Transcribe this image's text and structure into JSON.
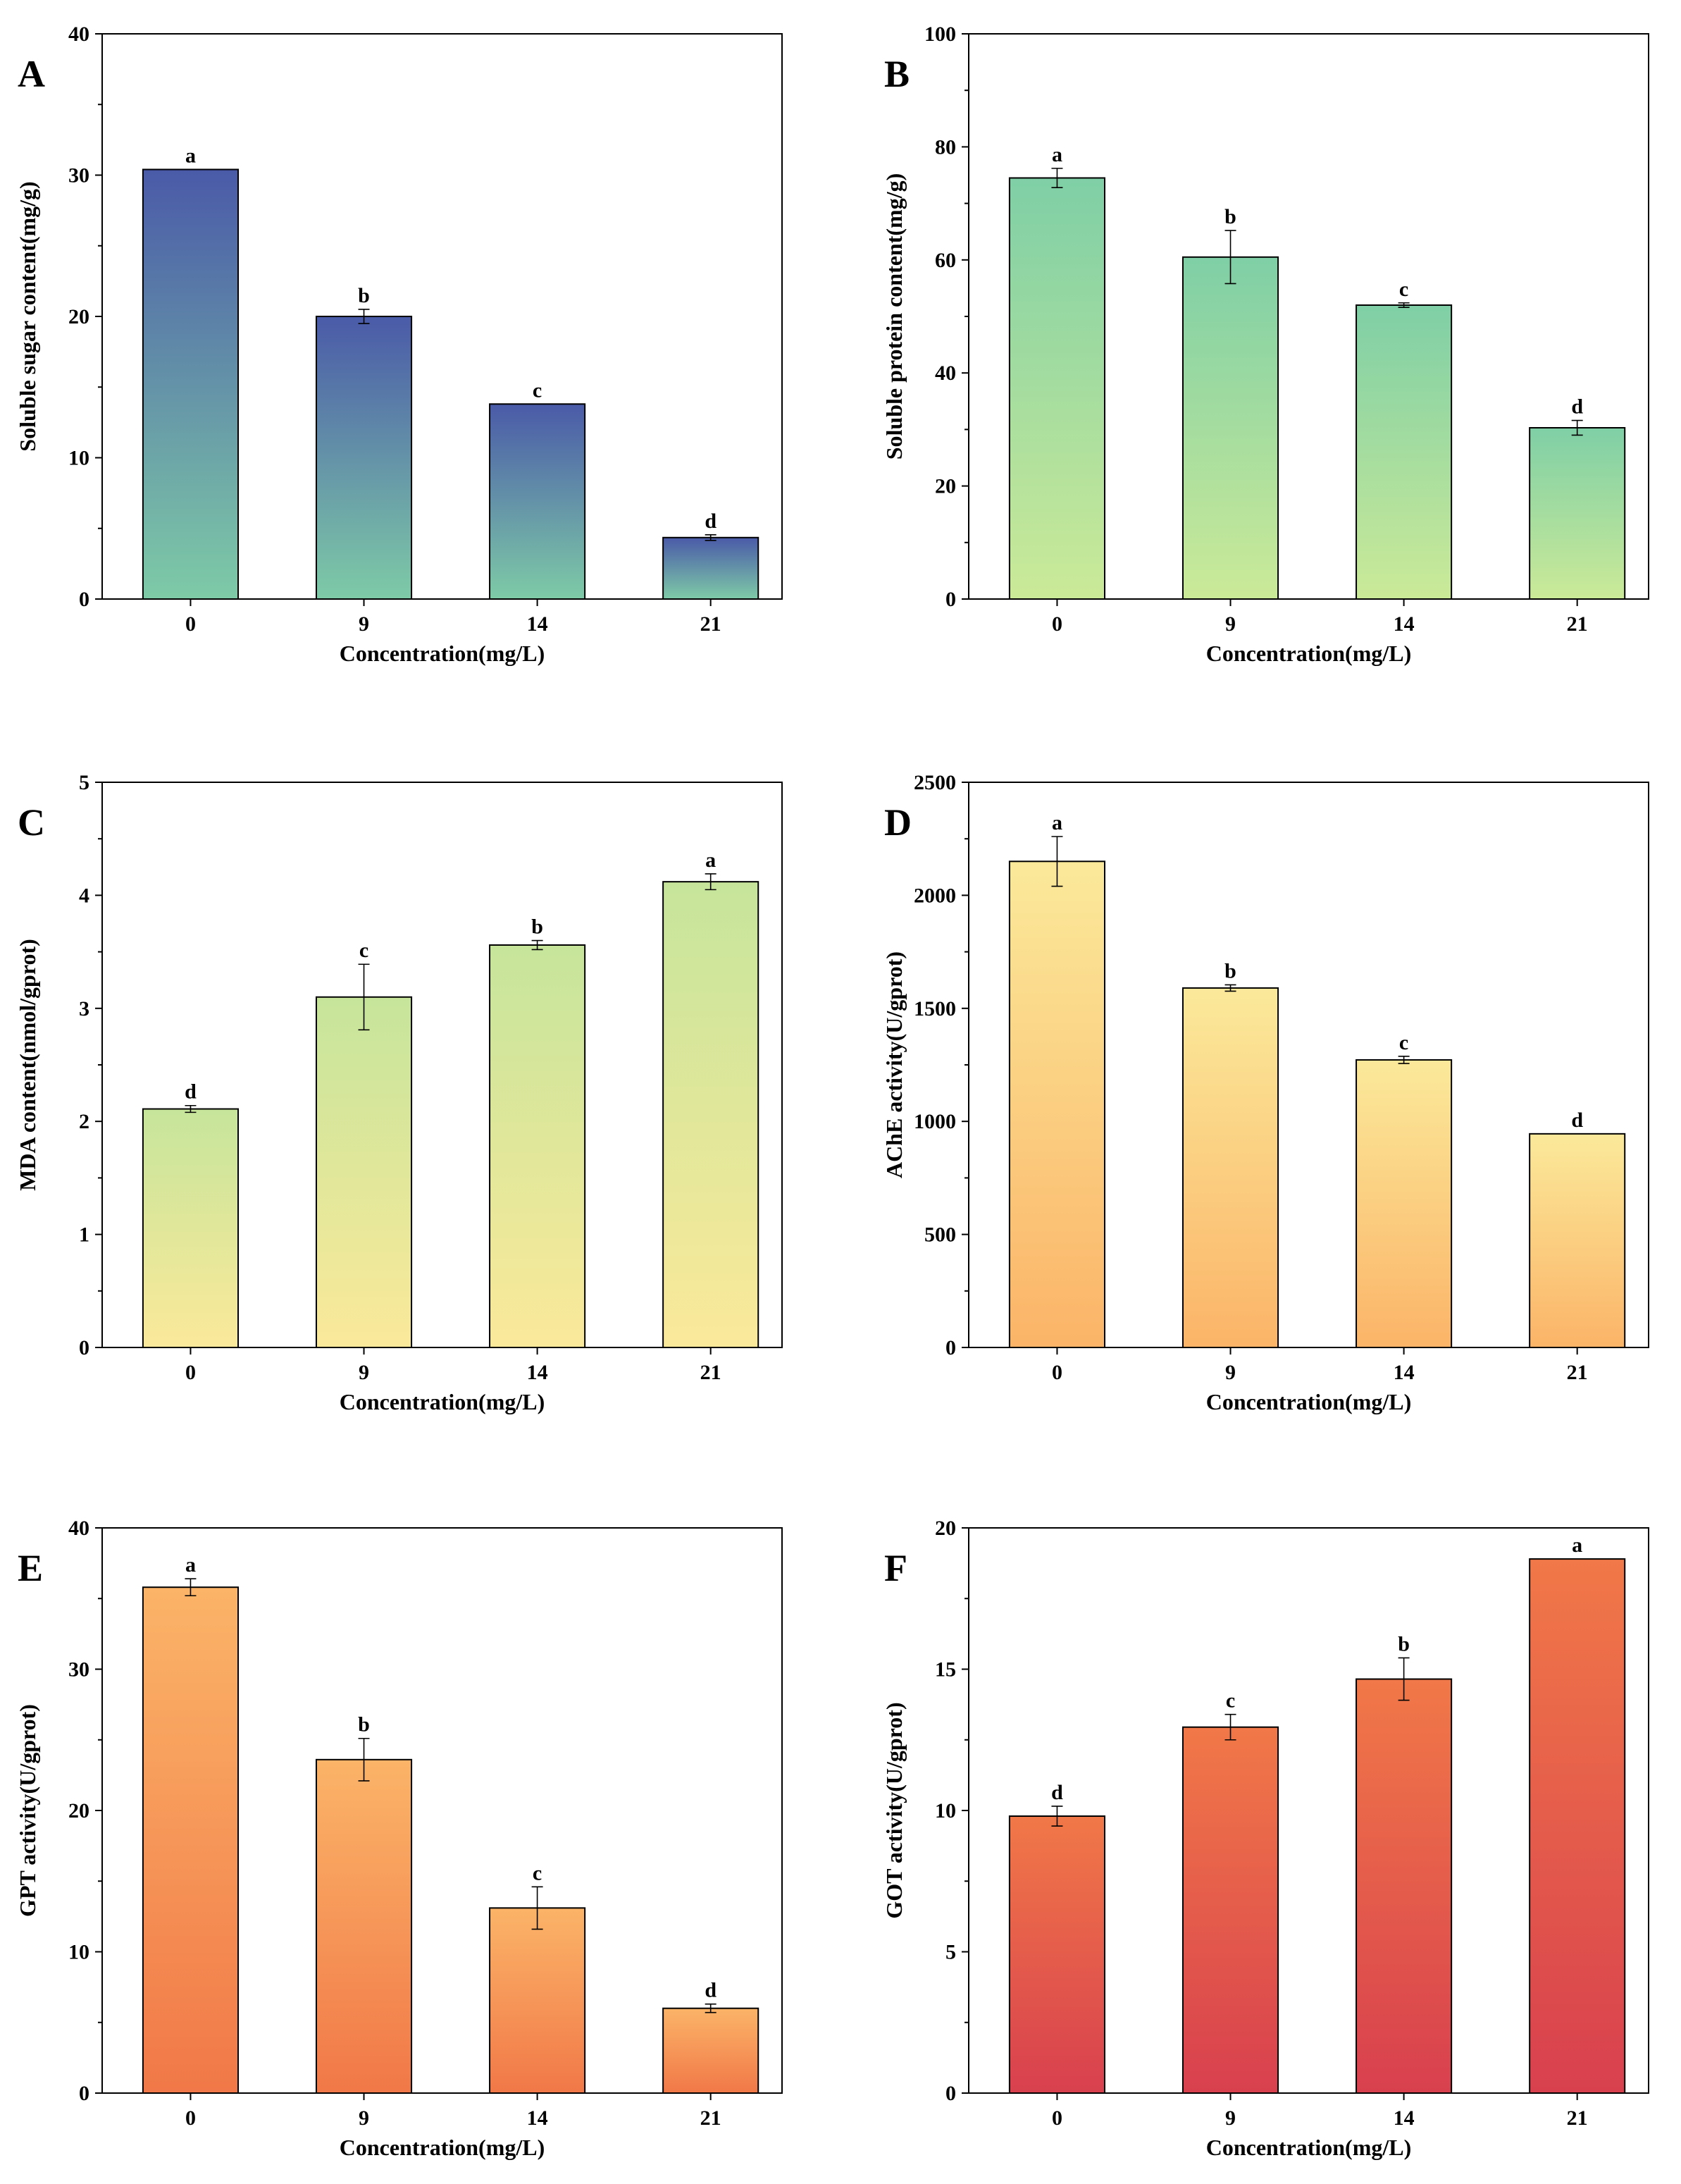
{
  "figure": {
    "panels": [
      {
        "letter": "A",
        "gradient": {
          "top": "#4a5aa8",
          "bottom": "#7ecba7"
        }
      },
      {
        "letter": "B",
        "gradient": {
          "top": "#7fcfa6",
          "bottom": "#cbea98"
        }
      },
      {
        "letter": "C",
        "gradient": {
          "top": "#c6e59b",
          "bottom": "#fbe99a"
        }
      },
      {
        "letter": "D",
        "gradient": {
          "top": "#fbe99a",
          "bottom": "#fbb468"
        }
      },
      {
        "letter": "E",
        "gradient": {
          "top": "#fbb468",
          "bottom": "#f17848"
        }
      },
      {
        "letter": "F",
        "gradient": {
          "top": "#f17848",
          "bottom": "#d8404e"
        }
      }
    ]
  },
  "chart_data": [
    {
      "type": "bar",
      "panel": "A",
      "categories": [
        "0",
        "9",
        "14",
        "21"
      ],
      "values": [
        30.4,
        20.0,
        13.8,
        4.35
      ],
      "errors": [
        0.0,
        0.5,
        0.0,
        0.2
      ],
      "significance": [
        "a",
        "b",
        "c",
        "d"
      ],
      "xlabel": "Concentration(mg/L)",
      "ylabel": "Soluble sugar content(mg/g)",
      "ylim": [
        0,
        40
      ],
      "yticks": [
        "0",
        "10",
        "20",
        "30",
        "40"
      ],
      "grid": false
    },
    {
      "type": "bar",
      "panel": "B",
      "categories": [
        "0",
        "9",
        "14",
        "21"
      ],
      "values": [
        74.5,
        60.5,
        52.0,
        30.3
      ],
      "errors": [
        1.7,
        4.7,
        0.4,
        1.3
      ],
      "significance": [
        "a",
        "b",
        "c",
        "d"
      ],
      "xlabel": "Concentration(mg/L)",
      "ylabel": "Soluble protein content(mg/g)",
      "ylim": [
        0,
        100
      ],
      "yticks": [
        "0",
        "20",
        "40",
        "60",
        "80",
        "100"
      ],
      "grid": false
    },
    {
      "type": "bar",
      "panel": "C",
      "categories": [
        "0",
        "9",
        "14",
        "21"
      ],
      "values": [
        2.11,
        3.1,
        3.56,
        4.12
      ],
      "errors": [
        0.03,
        0.29,
        0.04,
        0.07
      ],
      "significance": [
        "d",
        "c",
        "b",
        "a"
      ],
      "xlabel": "Concentration(mg/L)",
      "ylabel": "MDA content(nmol/gprot)",
      "ylim": [
        0,
        5
      ],
      "yticks": [
        "0",
        "1",
        "2",
        "3",
        "4",
        "5"
      ],
      "grid": false
    },
    {
      "type": "bar",
      "panel": "D",
      "categories": [
        "0",
        "9",
        "14",
        "21"
      ],
      "values": [
        2150,
        1590,
        1272,
        945
      ],
      "errors": [
        110,
        14,
        16,
        0
      ],
      "significance": [
        "a",
        "b",
        "c",
        "d"
      ],
      "xlabel": "Concentration(mg/L)",
      "ylabel": "AChE activity(U/gprot)",
      "ylim": [
        0,
        2500
      ],
      "yticks": [
        "0",
        "500",
        "1000",
        "1500",
        "2000",
        "2500"
      ],
      "grid": false
    },
    {
      "type": "bar",
      "panel": "E",
      "categories": [
        "0",
        "9",
        "14",
        "21"
      ],
      "values": [
        35.8,
        23.6,
        13.1,
        6.0
      ],
      "errors": [
        0.6,
        1.5,
        1.5,
        0.3
      ],
      "significance": [
        "a",
        "b",
        "c",
        "d"
      ],
      "xlabel": "Concentration(mg/L)",
      "ylabel": "GPT  activity(U/gprot)",
      "ylim": [
        0,
        40
      ],
      "yticks": [
        "0",
        "10",
        "20",
        "30",
        "40"
      ],
      "grid": false
    },
    {
      "type": "bar",
      "panel": "F",
      "categories": [
        "0",
        "9",
        "14",
        "21"
      ],
      "values": [
        9.8,
        12.95,
        14.65,
        18.9
      ],
      "errors": [
        0.35,
        0.45,
        0.75,
        0.0
      ],
      "significance": [
        "d",
        "c",
        "b",
        "a"
      ],
      "xlabel": "Concentration(mg/L)",
      "ylabel": "GOT activity(U/gprot)",
      "ylim": [
        0,
        20
      ],
      "yticks": [
        "0",
        "5",
        "10",
        "15",
        "20"
      ],
      "grid": false
    }
  ]
}
